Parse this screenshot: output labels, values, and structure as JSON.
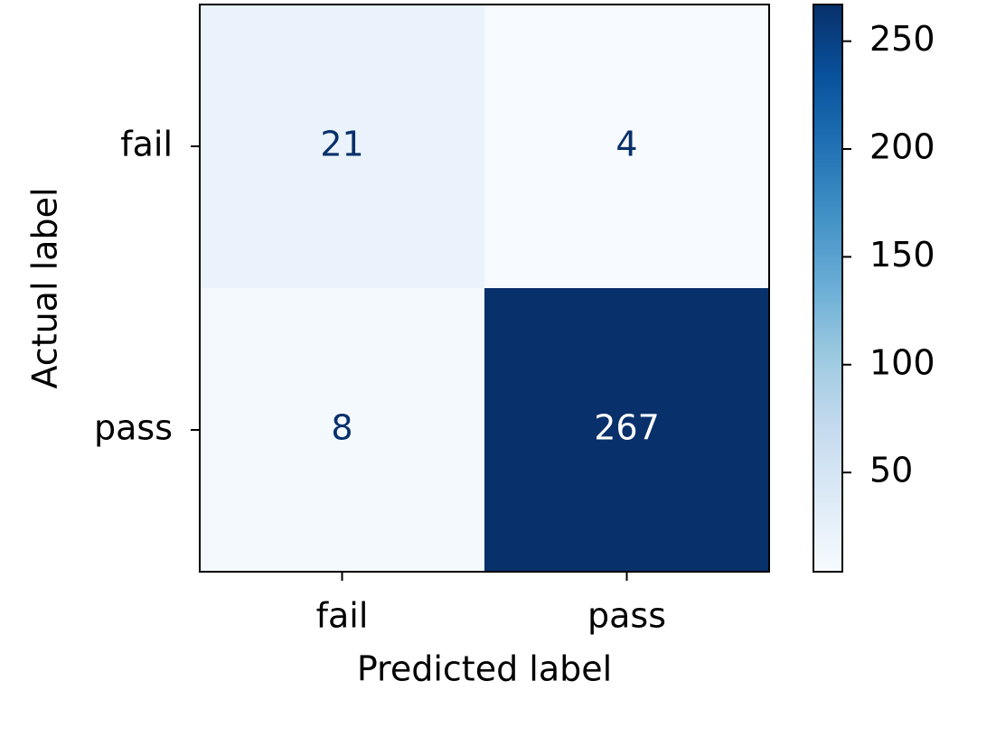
{
  "chart_data": {
    "type": "heatmap",
    "x_categories": [
      "fail",
      "pass"
    ],
    "y_categories": [
      "fail",
      "pass"
    ],
    "values": [
      [
        21,
        4
      ],
      [
        8,
        267
      ]
    ],
    "xlabel": "Predicted label",
    "ylabel": "Actual label",
    "colormap": "Blues",
    "clim": [
      4,
      267
    ],
    "cbar_ticks": [
      50,
      100,
      150,
      200,
      250
    ]
  }
}
